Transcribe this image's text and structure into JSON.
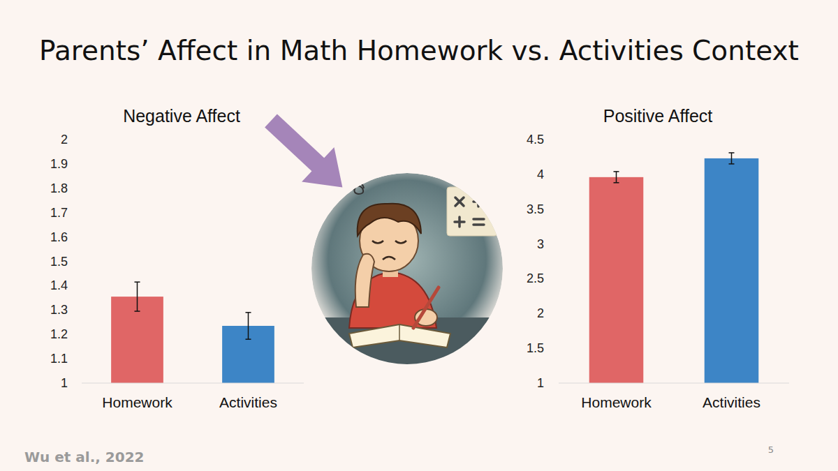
{
  "slide": {
    "title": "Parents’ Affect in Math Homework vs. Activities Context",
    "citation": "Wu et al., 2022",
    "page_number": 5
  },
  "chart_data": [
    {
      "type": "bar",
      "title": "Negative Affect",
      "categories": [
        "Homework",
        "Activities"
      ],
      "values": [
        1.355,
        1.235
      ],
      "errors": [
        0.06,
        0.055
      ],
      "colors": [
        "#e06666",
        "#3d85c6"
      ],
      "ylim": [
        1,
        2
      ],
      "yticks": [
        1,
        1.1,
        1.2,
        1.3,
        1.4,
        1.5,
        1.6,
        1.7,
        1.8,
        1.9,
        2
      ],
      "grid": false
    },
    {
      "type": "bar",
      "title": "Positive Affect",
      "categories": [
        "Homework",
        "Activities"
      ],
      "values": [
        3.96,
        4.23
      ],
      "errors": [
        0.08,
        0.08
      ],
      "colors": [
        "#e06666",
        "#3d85c6"
      ],
      "ylim": [
        1,
        4.5
      ],
      "yticks": [
        1,
        1.5,
        2,
        2.5,
        3,
        3.5,
        4,
        4.5
      ],
      "grid": false
    }
  ]
}
